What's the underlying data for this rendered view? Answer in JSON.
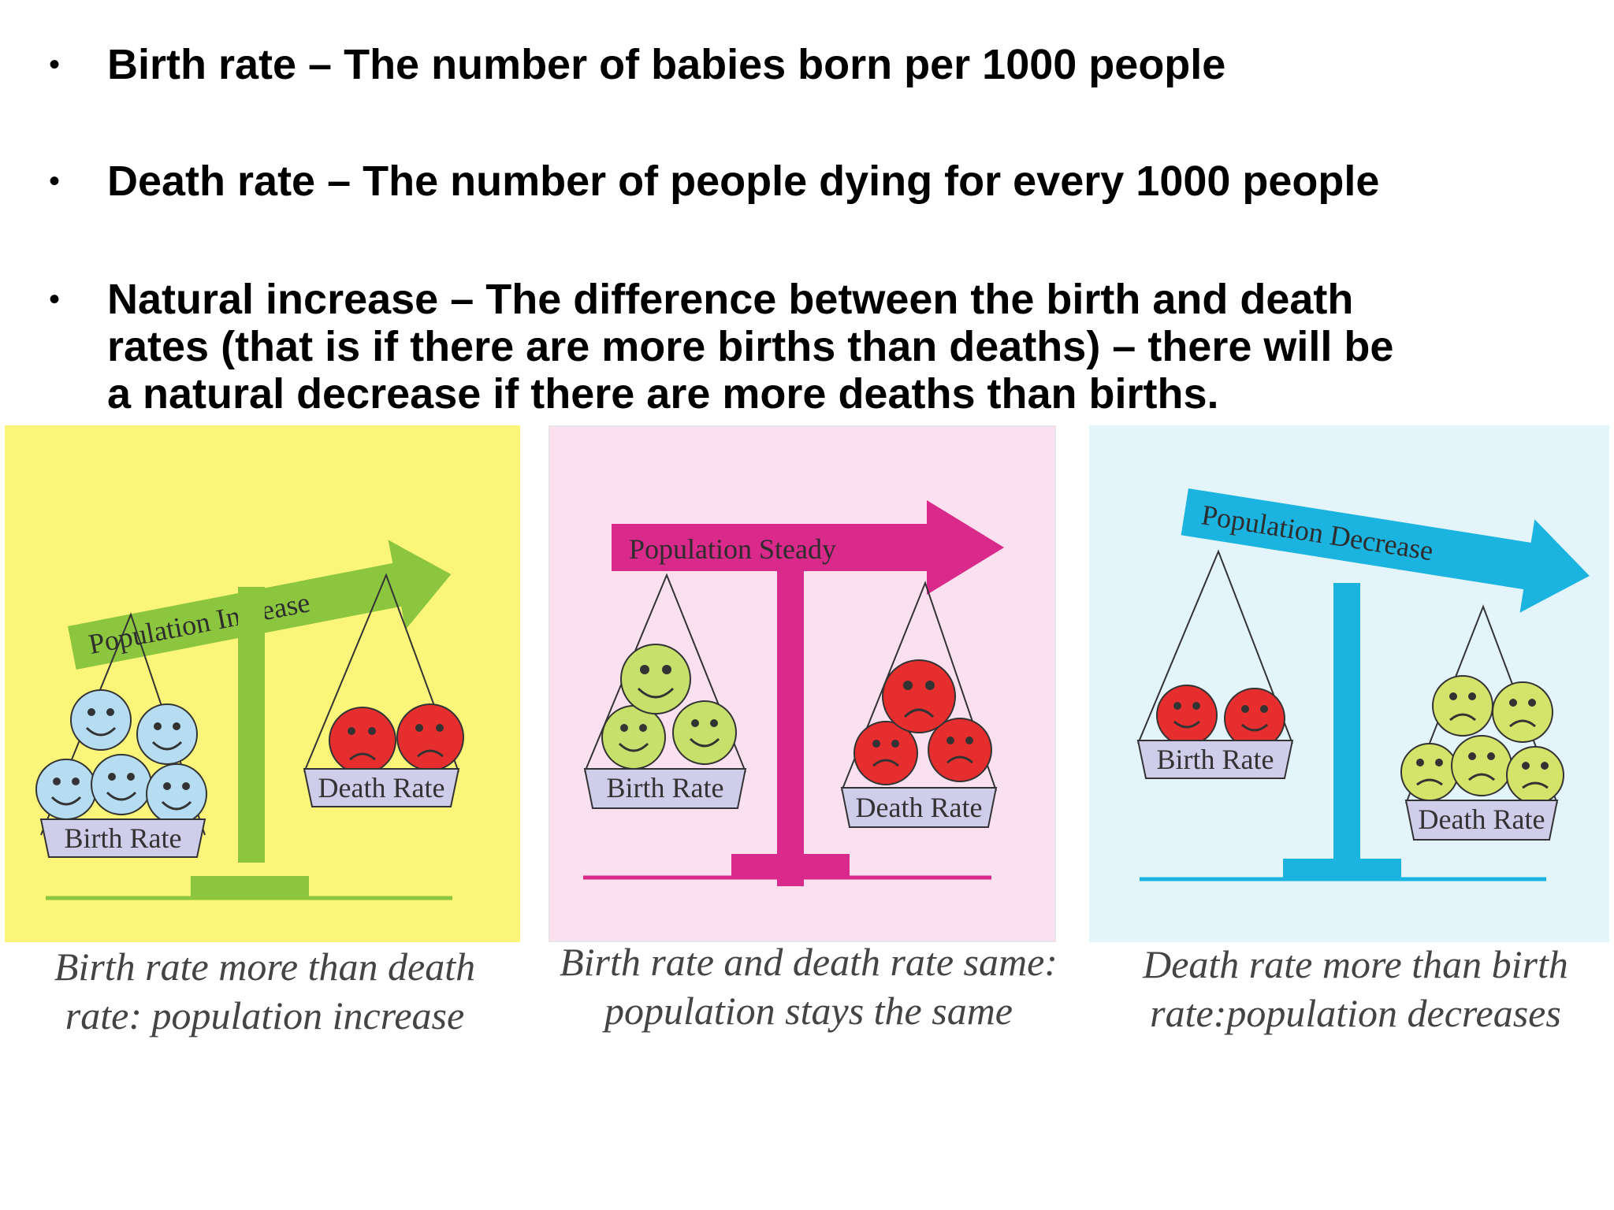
{
  "definitions": [
    {
      "bullet": "•",
      "text": "Birth rate – The number of babies born per 1000 people"
    },
    {
      "bullet": "•",
      "text": "Death rate – The number of people dying for every 1000 people"
    },
    {
      "bullet": "•",
      "text_lines": [
        "Natural increase – The difference between the birth and death",
        "rates (that is if there are more births than deaths) – there will be",
        "a natural decrease if there are more deaths than births."
      ]
    }
  ],
  "panels": [
    {
      "arrow_label": "Population Increase",
      "left_pan_label": "Birth Rate",
      "right_pan_label": "Death Rate",
      "caption_lines": [
        "Birth rate more than death",
        "rate: population increase"
      ],
      "colors": {
        "background": "#fbf67a",
        "accent": "#8cc63f",
        "left_faces": "#b6dcf2",
        "right_faces": "#e62e2e"
      }
    },
    {
      "arrow_label": "Population Steady",
      "left_pan_label": "Birth Rate",
      "right_pan_label": "Death Rate",
      "caption_lines": [
        "Birth rate and death rate same:",
        "population stays the same"
      ],
      "colors": {
        "background": "#fbe1ef",
        "accent": "#d9298a",
        "left_faces": "#c6e06b",
        "right_faces": "#e62e2e"
      }
    },
    {
      "arrow_label": "Population Decrease",
      "left_pan_label": "Birth Rate",
      "right_pan_label": "Death Rate",
      "caption_lines": [
        "Death rate more than birth",
        "rate:population decreases"
      ],
      "colors": {
        "background": "#e3f4fb",
        "accent": "#1bb3e0",
        "left_faces": "#e62e2e",
        "right_faces": "#d4e36a"
      }
    }
  ]
}
